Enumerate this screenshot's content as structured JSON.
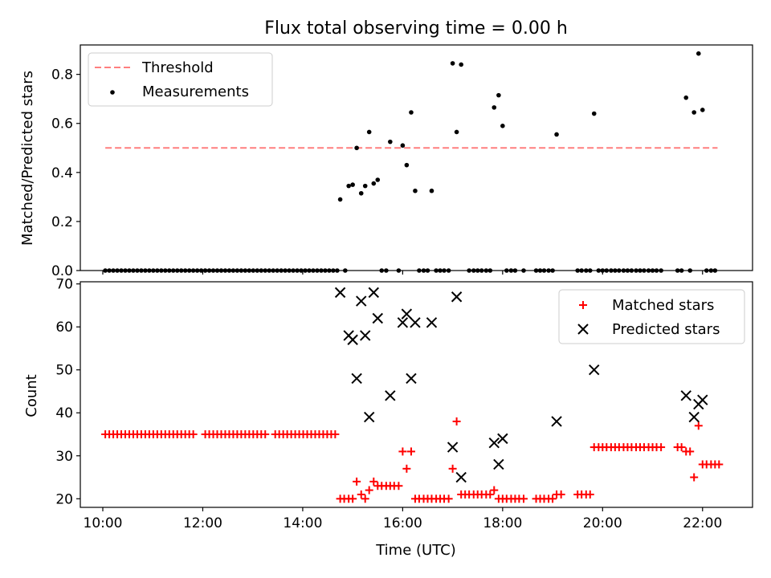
{
  "chart_data": [
    {
      "type": "scatter",
      "title": "Flux total observing time = 0.00 h",
      "xlabel": "",
      "ylabel": "Matched/Predicted stars",
      "xlim": [
        9.55,
        23.0
      ],
      "ylim": [
        0,
        0.92
      ],
      "yticks": [
        0.0,
        0.2,
        0.4,
        0.6,
        0.8
      ],
      "ytick_labels": [
        "0.0",
        "0.2",
        "0.4",
        "0.6",
        "0.8"
      ],
      "legend_position": "top-left",
      "threshold": {
        "name": "Threshold",
        "value": 0.5,
        "x_range": [
          10.05,
          22.3
        ],
        "color": "#ff7f7f",
        "style": "dashed"
      },
      "series": [
        {
          "name": "Measurements",
          "color": "#000000",
          "marker": "dot",
          "points": [
            [
              14.75,
              0.29
            ],
            [
              14.92,
              0.345
            ],
            [
              15.0,
              0.35
            ],
            [
              15.08,
              0.5
            ],
            [
              15.17,
              0.315
            ],
            [
              15.25,
              0.345
            ],
            [
              15.33,
              0.565
            ],
            [
              15.42,
              0.355
            ],
            [
              15.5,
              0.37
            ],
            [
              15.75,
              0.525
            ],
            [
              16.0,
              0.51
            ],
            [
              16.08,
              0.43
            ],
            [
              16.17,
              0.645
            ],
            [
              16.25,
              0.325
            ],
            [
              16.58,
              0.325
            ],
            [
              17.0,
              0.845
            ],
            [
              17.08,
              0.565
            ],
            [
              17.17,
              0.84
            ],
            [
              17.83,
              0.665
            ],
            [
              17.92,
              0.715
            ],
            [
              18.0,
              0.59
            ],
            [
              19.08,
              0.555
            ],
            [
              19.83,
              0.64
            ],
            [
              21.67,
              0.705
            ],
            [
              21.83,
              0.645
            ],
            [
              21.92,
              0.885
            ],
            [
              22.0,
              0.655
            ]
          ],
          "zero_x": [
            10.05,
            10.13,
            10.21,
            10.29,
            10.37,
            10.45,
            10.53,
            10.61,
            10.69,
            10.77,
            10.85,
            10.93,
            11.01,
            11.09,
            11.17,
            11.25,
            11.33,
            11.41,
            11.49,
            11.57,
            11.65,
            11.73,
            11.81,
            11.89,
            11.97,
            12.05,
            12.13,
            12.21,
            12.29,
            12.37,
            12.45,
            12.53,
            12.61,
            12.69,
            12.77,
            12.85,
            12.93,
            13.01,
            13.09,
            13.17,
            13.25,
            13.33,
            13.41,
            13.49,
            13.57,
            13.65,
            13.73,
            13.81,
            13.89,
            13.97,
            14.05,
            14.13,
            14.21,
            14.29,
            14.37,
            14.45,
            14.53,
            14.61,
            14.69,
            14.85,
            15.58,
            15.67,
            15.92,
            16.33,
            16.42,
            16.5,
            16.67,
            16.75,
            16.83,
            16.92,
            17.33,
            17.42,
            17.5,
            17.58,
            17.67,
            17.75,
            18.08,
            18.17,
            18.25,
            18.42,
            18.67,
            18.75,
            18.83,
            18.92,
            19.0,
            19.5,
            19.58,
            19.67,
            19.75,
            19.92,
            20.0,
            20.08,
            20.17,
            20.25,
            20.33,
            20.42,
            20.5,
            20.58,
            20.67,
            20.75,
            20.83,
            20.92,
            21.0,
            21.08,
            21.17,
            21.5,
            21.58,
            21.75,
            22.08,
            22.17,
            22.25
          ]
        }
      ]
    },
    {
      "type": "scatter",
      "title": "",
      "xlabel": "Time (UTC)",
      "ylabel": "Count",
      "xlim": [
        9.55,
        23.0
      ],
      "ylim": [
        18,
        70.5
      ],
      "yticks": [
        20,
        30,
        40,
        50,
        60,
        70
      ],
      "ytick_labels": [
        "20",
        "30",
        "40",
        "50",
        "60",
        "70"
      ],
      "xticks": [
        10,
        12,
        14,
        16,
        18,
        20,
        22
      ],
      "xtick_labels": [
        "10:00",
        "12:00",
        "14:00",
        "16:00",
        "18:00",
        "20:00",
        "22:00"
      ],
      "legend_position": "top-right",
      "series": [
        {
          "name": "Matched stars",
          "color": "#ff0000",
          "marker": "plus",
          "points": [
            [
              14.75,
              20
            ],
            [
              14.83,
              20
            ],
            [
              14.92,
              20
            ],
            [
              15.0,
              20
            ],
            [
              15.08,
              24
            ],
            [
              15.17,
              21
            ],
            [
              15.25,
              20
            ],
            [
              15.33,
              22
            ],
            [
              15.42,
              24
            ],
            [
              15.5,
              23
            ],
            [
              15.58,
              23
            ],
            [
              15.67,
              23
            ],
            [
              15.75,
              23
            ],
            [
              15.83,
              23
            ],
            [
              15.92,
              23
            ],
            [
              16.0,
              31
            ],
            [
              16.08,
              27
            ],
            [
              16.17,
              31
            ],
            [
              16.25,
              20
            ],
            [
              16.33,
              20
            ],
            [
              16.42,
              20
            ],
            [
              16.5,
              20
            ],
            [
              16.58,
              20
            ],
            [
              16.67,
              20
            ],
            [
              16.75,
              20
            ],
            [
              16.83,
              20
            ],
            [
              16.92,
              20
            ],
            [
              17.0,
              27
            ],
            [
              17.08,
              38
            ],
            [
              17.17,
              21
            ],
            [
              17.25,
              21
            ],
            [
              17.33,
              21
            ],
            [
              17.42,
              21
            ],
            [
              17.5,
              21
            ],
            [
              17.58,
              21
            ],
            [
              17.67,
              21
            ],
            [
              17.75,
              21
            ],
            [
              17.83,
              22
            ],
            [
              17.92,
              20
            ],
            [
              18.0,
              20
            ],
            [
              18.08,
              20
            ],
            [
              18.17,
              20
            ],
            [
              18.25,
              20
            ],
            [
              18.33,
              20
            ],
            [
              18.42,
              20
            ],
            [
              18.67,
              20
            ],
            [
              18.75,
              20
            ],
            [
              18.83,
              20
            ],
            [
              18.92,
              20
            ],
            [
              19.0,
              20
            ],
            [
              19.08,
              21
            ],
            [
              19.17,
              21
            ],
            [
              19.5,
              21
            ],
            [
              19.58,
              21
            ],
            [
              19.67,
              21
            ],
            [
              19.75,
              21
            ],
            [
              19.83,
              32
            ],
            [
              19.92,
              32
            ],
            [
              20.0,
              32
            ],
            [
              20.08,
              32
            ],
            [
              20.17,
              32
            ],
            [
              20.25,
              32
            ],
            [
              20.33,
              32
            ],
            [
              20.42,
              32
            ],
            [
              20.5,
              32
            ],
            [
              20.58,
              32
            ],
            [
              20.67,
              32
            ],
            [
              20.75,
              32
            ],
            [
              20.83,
              32
            ],
            [
              20.92,
              32
            ],
            [
              21.0,
              32
            ],
            [
              21.08,
              32
            ],
            [
              21.17,
              32
            ],
            [
              21.5,
              32
            ],
            [
              21.58,
              32
            ],
            [
              21.67,
              31
            ],
            [
              21.75,
              31
            ],
            [
              21.83,
              25
            ],
            [
              21.92,
              37
            ],
            [
              22.0,
              28
            ],
            [
              22.08,
              28
            ],
            [
              22.17,
              28
            ],
            [
              22.25,
              28
            ],
            [
              22.33,
              28
            ]
          ],
          "flat_run": {
            "value": 35,
            "x": [
              10.05,
              10.13,
              10.21,
              10.29,
              10.37,
              10.45,
              10.53,
              10.61,
              10.69,
              10.77,
              10.85,
              10.93,
              11.01,
              11.09,
              11.17,
              11.25,
              11.33,
              11.41,
              11.49,
              11.57,
              11.65,
              11.73,
              11.81,
              12.05,
              12.13,
              12.21,
              12.29,
              12.37,
              12.45,
              12.53,
              12.61,
              12.69,
              12.77,
              12.85,
              12.93,
              13.01,
              13.09,
              13.17,
              13.25,
              13.45,
              13.53,
              13.61,
              13.69,
              13.77,
              13.85,
              13.93,
              14.01,
              14.09,
              14.17,
              14.25,
              14.33,
              14.41,
              14.49,
              14.57,
              14.65
            ]
          }
        },
        {
          "name": "Predicted stars",
          "color": "#000000",
          "marker": "x",
          "points": [
            [
              14.75,
              68
            ],
            [
              14.92,
              58
            ],
            [
              15.0,
              57
            ],
            [
              15.08,
              48
            ],
            [
              15.17,
              66
            ],
            [
              15.25,
              58
            ],
            [
              15.33,
              39
            ],
            [
              15.42,
              68
            ],
            [
              15.5,
              62
            ],
            [
              15.75,
              44
            ],
            [
              16.0,
              61
            ],
            [
              16.08,
              63
            ],
            [
              16.17,
              48
            ],
            [
              16.25,
              61
            ],
            [
              16.58,
              61
            ],
            [
              17.0,
              32
            ],
            [
              17.08,
              67
            ],
            [
              17.17,
              25
            ],
            [
              17.83,
              33
            ],
            [
              17.92,
              28
            ],
            [
              18.0,
              34
            ],
            [
              19.08,
              38
            ],
            [
              19.83,
              50
            ],
            [
              21.67,
              44
            ],
            [
              21.83,
              39
            ],
            [
              21.92,
              42
            ],
            [
              22.0,
              43
            ]
          ]
        }
      ]
    }
  ]
}
